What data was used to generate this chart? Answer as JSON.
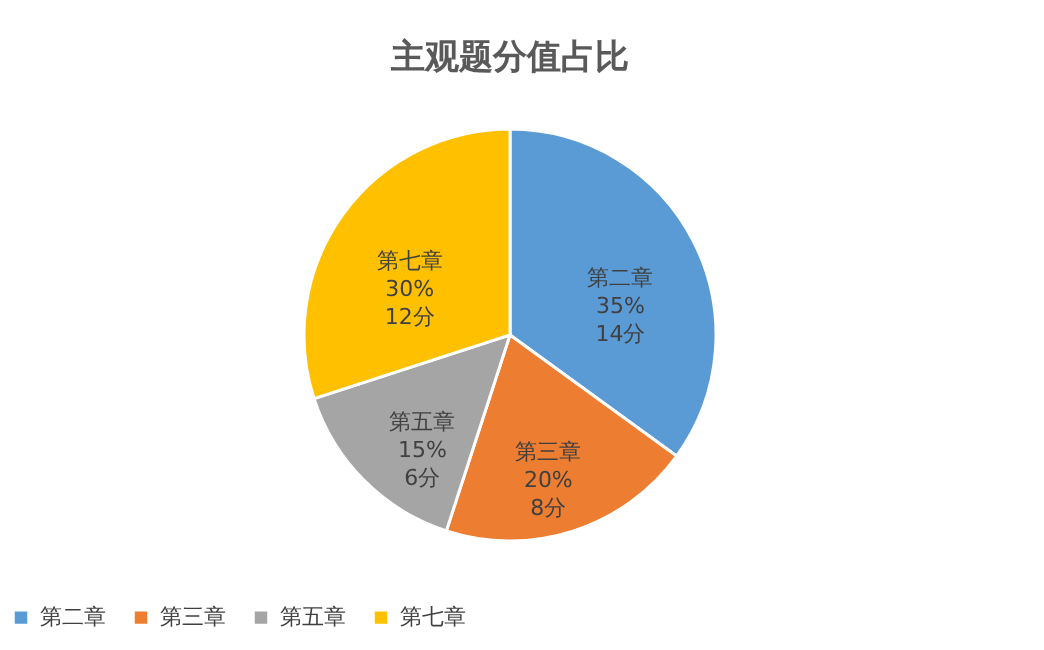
{
  "chart_data": {
    "type": "pie",
    "title": "主观题分值占比",
    "categories": [
      "第二章",
      "第三章",
      "第五章",
      "第七章"
    ],
    "values": [
      14,
      8,
      6,
      12
    ],
    "value_labels": [
      "35%\n14分",
      "20%\n8分",
      "15%\n6分",
      "30%\n12分"
    ],
    "colors": [
      "#5b9bd5",
      "#ed7d31",
      "#a5a5a5",
      "#ffc000"
    ],
    "legend": "bottom"
  }
}
